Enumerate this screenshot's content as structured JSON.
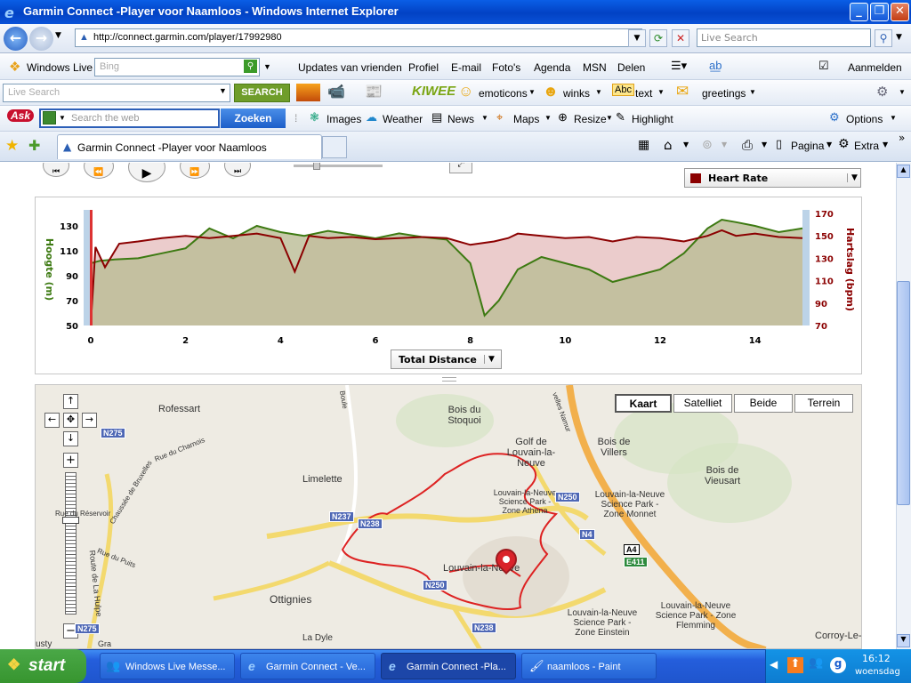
{
  "window": {
    "title": "Garmin Connect -Player voor Naamloos - Windows Internet Explorer"
  },
  "address": {
    "url": "http://connect.garmin.com/player/17992980",
    "search_placeholder": "Live Search"
  },
  "toolbar1": {
    "brand": "Windows Live",
    "search_value": "Bing",
    "items": [
      "Updates van vrienden",
      "Profiel",
      "E-mail",
      "Foto's",
      "Agenda",
      "MSN",
      "Delen"
    ],
    "signin": "Aanmelden"
  },
  "toolbar2": {
    "search_placeholder": "Live Search",
    "search_button": "SEARCH",
    "brand": "KIWEE",
    "items": [
      "emoticons",
      "winks",
      "text",
      "greetings"
    ]
  },
  "toolbar3": {
    "brand": "Ask",
    "search_placeholder": "Search the web",
    "search_button": "Zoeken",
    "items": [
      "Images",
      "Weather",
      "News",
      "Maps",
      "Resize",
      "Highlight"
    ],
    "options": "Options"
  },
  "tabs": {
    "active": "Garmin Connect -Player voor Naamloos",
    "right_items": [
      "Pagina",
      "Extra"
    ]
  },
  "player": {
    "metric_select": "Heart Rate",
    "x_select": "Total Distance"
  },
  "chart_data": {
    "type": "area",
    "x_ticks": [
      "0",
      "2",
      "4",
      "6",
      "8",
      "10",
      "12",
      "14"
    ],
    "x_range": [
      0,
      15
    ],
    "y_left_label": "Hoogte (m)",
    "y_left_ticks": [
      "50",
      "70",
      "90",
      "110",
      "130"
    ],
    "y_left_range": [
      50,
      140
    ],
    "y_right_label": "Hartslag (bpm)",
    "y_right_ticks": [
      "70",
      "90",
      "110",
      "130",
      "150",
      "170"
    ],
    "y_right_range": [
      70,
      170
    ],
    "series": [
      {
        "name": "Hoogte (m)",
        "color": "#3d7a12",
        "axis": "left",
        "x": [
          0,
          0.2,
          0.5,
          1,
          1.5,
          2,
          2.5,
          3,
          3.5,
          4,
          4.5,
          5,
          5.5,
          6,
          6.5,
          7,
          7.5,
          8,
          8.3,
          8.6,
          9,
          9.5,
          10,
          10.5,
          11,
          11.5,
          12,
          12.5,
          13,
          13.3,
          13.6,
          14,
          14.5,
          15
        ],
        "values": [
          100,
          102,
          103,
          104,
          108,
          112,
          128,
          120,
          130,
          125,
          122,
          126,
          123,
          120,
          124,
          121,
          119,
          100,
          58,
          70,
          95,
          105,
          100,
          95,
          85,
          90,
          95,
          108,
          128,
          135,
          133,
          130,
          125,
          128
        ]
      },
      {
        "name": "Hartslag (bpm)",
        "color": "#8b0000",
        "axis": "right",
        "x": [
          0,
          0.1,
          0.3,
          0.6,
          1,
          1.5,
          2,
          2.5,
          3,
          3.5,
          4,
          4.3,
          4.6,
          5,
          5.5,
          6,
          6.5,
          7,
          7.5,
          8,
          8.5,
          8.8,
          9,
          9.5,
          10,
          10.5,
          11,
          11.5,
          12,
          12.5,
          13,
          13.3,
          13.6,
          14,
          14.5,
          15
        ],
        "values": [
          70,
          140,
          122,
          143,
          145,
          148,
          150,
          148,
          150,
          152,
          148,
          118,
          150,
          148,
          149,
          147,
          148,
          149,
          148,
          142,
          145,
          148,
          152,
          150,
          148,
          149,
          145,
          149,
          148,
          145,
          150,
          155,
          150,
          152,
          149,
          148
        ]
      }
    ]
  },
  "map": {
    "map_types": [
      "Kaart",
      "Satelliet",
      "Beide",
      "Terrein"
    ],
    "labels": [
      "Rofessart",
      "Bois du Stoquoi",
      "Golf de Louvain-la-Neuve",
      "Bois de Villers",
      "Bois de Vieusart",
      "Limelette",
      "Louvain-la-Neuve Science Park - Zone Athena",
      "Louvain-la-Neuve Science Park - Zone Monnet",
      "Louvain-la-Neuve",
      "Ottignies",
      "La Dyle",
      "Louvain-la-Neuve Science Park - Zone Einstein",
      "Louvain-la-Neuve Science Park - Zone Flemming",
      "Corroy-Le-",
      "Rue du Charnois",
      "Chaussée de Bruxelles",
      "Rue du Réservoir",
      "Rue du Puits",
      "Route de La Hulpe",
      "Boule",
      "velles Namur",
      "usty",
      "Gra"
    ],
    "road_shields": [
      "N275",
      "N237",
      "N238",
      "N250",
      "N250",
      "N4",
      "A4",
      "E411",
      "N238",
      "N275"
    ]
  },
  "taskbar": {
    "start": "start",
    "tasks": [
      "Windows Live Messe...",
      "Garmin Connect - Ve...",
      "Garmin Connect -Pla...",
      "naamloos - Paint"
    ],
    "time": "16:12",
    "day": "woensdag"
  }
}
